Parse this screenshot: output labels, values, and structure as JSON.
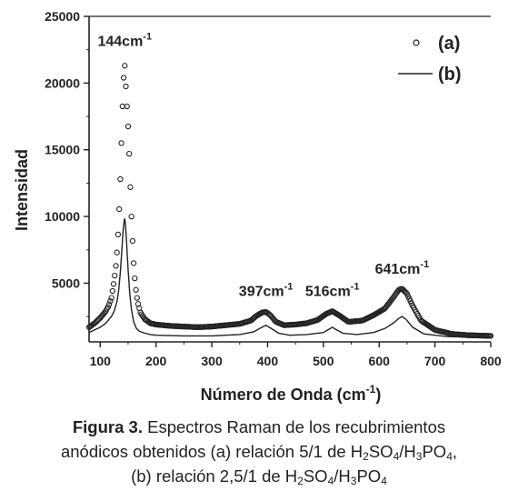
{
  "chart_data": {
    "type": "line",
    "xlabel": "Número de Onda (cm",
    "xlabel_sup": "-1",
    "xlabel_end": ")",
    "ylabel": "Intensidad",
    "xlim": [
      80,
      800
    ],
    "ylim": [
      600,
      25000
    ],
    "x_ticks": [
      100,
      200,
      300,
      400,
      500,
      600,
      700,
      800
    ],
    "y_ticks": [
      5000,
      10000,
      15000,
      20000,
      25000
    ],
    "grid": false,
    "legend_position": "top-right",
    "peak_labels": [
      {
        "text": "144cm",
        "sup": "-1",
        "x": 144,
        "y": 22800
      },
      {
        "text": "397cm",
        "sup": "-1",
        "x": 397,
        "y": 4050
      },
      {
        "text": "516cm",
        "sup": "-1",
        "x": 516,
        "y": 4050
      },
      {
        "text": "641cm",
        "sup": "-1",
        "x": 641,
        "y": 5700
      }
    ],
    "series": [
      {
        "name": "(a)",
        "style": "open-circles",
        "x": [
          80,
          90,
          100,
          110,
          115,
          120,
          125,
          128,
          131,
          133,
          135,
          137,
          139,
          141,
          143,
          144,
          145,
          147,
          149,
          151,
          153,
          155,
          157,
          160,
          163,
          167,
          172,
          180,
          190,
          200,
          225,
          250,
          275,
          300,
          325,
          350,
          370,
          380,
          390,
          397,
          405,
          415,
          430,
          450,
          470,
          490,
          505,
          516,
          528,
          545,
          570,
          590,
          610,
          625,
          635,
          641,
          650,
          660,
          675,
          700,
          730,
          760,
          800
        ],
        "y": [
          1700,
          2000,
          2400,
          2900,
          3300,
          3900,
          5200,
          6300,
          7800,
          9500,
          11600,
          14000,
          17000,
          19500,
          21300,
          21300,
          20500,
          19000,
          17500,
          16000,
          13400,
          11000,
          9000,
          6500,
          4800,
          3600,
          2800,
          2300,
          2000,
          1900,
          1800,
          1750,
          1700,
          1750,
          1850,
          1950,
          2200,
          2550,
          2800,
          2850,
          2600,
          2100,
          1850,
          1900,
          2000,
          2250,
          2700,
          2900,
          2600,
          2100,
          2200,
          2600,
          3100,
          3900,
          4500,
          4600,
          4200,
          3300,
          2200,
          1500,
          1200,
          1100,
          1050
        ]
      },
      {
        "name": "(b)",
        "style": "line",
        "x": [
          80,
          90,
          100,
          110,
          120,
          125,
          130,
          133,
          136,
          139,
          141,
          143,
          144,
          145,
          147,
          150,
          153,
          156,
          160,
          165,
          170,
          180,
          190,
          200,
          250,
          300,
          350,
          375,
          390,
          397,
          405,
          420,
          440,
          470,
          500,
          510,
          516,
          522,
          535,
          560,
          590,
          610,
          625,
          635,
          641,
          648,
          660,
          680,
          720,
          760,
          800
        ],
        "y": [
          1300,
          1500,
          1700,
          2000,
          2500,
          2900,
          3600,
          4400,
          5800,
          7600,
          8900,
          9700,
          9850,
          9500,
          8300,
          6000,
          4200,
          3000,
          2100,
          1600,
          1400,
          1250,
          1150,
          1100,
          1050,
          1050,
          1150,
          1350,
          1700,
          1850,
          1650,
          1250,
          1100,
          1150,
          1300,
          1550,
          1700,
          1550,
          1250,
          1150,
          1300,
          1600,
          2000,
          2350,
          2500,
          2300,
          1700,
          1200,
          1000,
          950,
          920
        ]
      }
    ]
  },
  "caption": {
    "figure_label": "Figura 3.",
    "line1_rest": " Espectros Raman de los recubrimientos",
    "line2_a": "anódicos obtenidos (a) relación 5/1 de H",
    "line2_b": "SO",
    "line2_c": "/H",
    "line2_d": "PO",
    "line2_e": ",",
    "line3_a": "(b) relación 2,5/1 de H",
    "line3_b": "SO",
    "line3_c": "/H",
    "line3_d": "PO",
    "sub_2": "2",
    "sub_3": "3",
    "sub_4": "4"
  }
}
